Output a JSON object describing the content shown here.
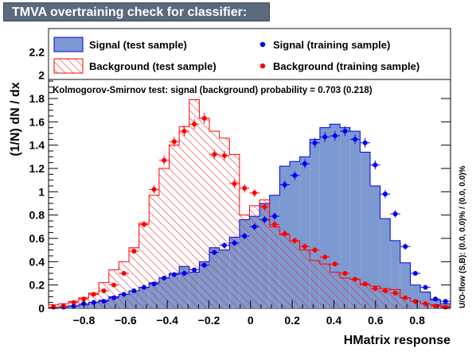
{
  "title": "TMVA overtraining check for classifier: HMatrix",
  "colors": {
    "signal_fill": "#7d99d1",
    "signal_line": "#0000ee",
    "background_line": "#ff0000",
    "background_hatch": "#dd2222",
    "title_bg": "#5a6a7c"
  },
  "legend": {
    "signal_test": "Signal (test sample)",
    "background_test": "Background (test sample)",
    "signal_train": "Signal (training sample)",
    "background_train": "Background (training sample)"
  },
  "ks_text": "Kolmogorov-Smirnov test: signal (background) probability = 0.703 (0.218)",
  "side_text": "U/O-flow (S,B): (0.0, 0.0)% / (0.0, 0.0)%",
  "chart_data": {
    "type": "histogram",
    "xlabel": "HMatrix response",
    "ylabel": "(1/N) dN / dx",
    "xlim": [
      -0.97,
      0.96
    ],
    "ylim": [
      0,
      2.4
    ],
    "x_ticks": [
      "−0.8",
      "−0.6",
      "−0.4",
      "−0.2",
      "0",
      "0.2",
      "0.4",
      "0.6",
      "0.8"
    ],
    "x_tick_values": [
      -0.8,
      -0.6,
      -0.4,
      -0.2,
      0,
      0.2,
      0.4,
      0.6,
      0.8
    ],
    "y_ticks": [
      "0",
      "0.2",
      "0.4",
      "0.6",
      "0.8",
      "1",
      "1.2",
      "1.4",
      "1.6",
      "1.8",
      "2",
      "2.2"
    ],
    "y_tick_values": [
      0,
      0.2,
      0.4,
      0.6,
      0.8,
      1.0,
      1.2,
      1.4,
      1.6,
      1.8,
      2.0,
      2.2
    ],
    "bin_edges_start": -0.97,
    "bin_width": 0.04825,
    "series": [
      {
        "name": "Signal (test sample)",
        "kind": "filled-histogram",
        "values": [
          0.01,
          0.01,
          0.02,
          0.03,
          0.05,
          0.07,
          0.1,
          0.12,
          0.15,
          0.18,
          0.22,
          0.26,
          0.3,
          0.36,
          0.31,
          0.4,
          0.52,
          0.5,
          0.61,
          0.76,
          0.79,
          0.9,
          0.97,
          1.22,
          1.26,
          1.3,
          1.45,
          1.55,
          1.58,
          1.55,
          1.52,
          1.34,
          1.05,
          0.77,
          0.58,
          0.39,
          0.2,
          0.14,
          0.07,
          0.04
        ]
      },
      {
        "name": "Background (test sample)",
        "kind": "hatched-histogram",
        "values": [
          0.03,
          0.04,
          0.06,
          0.09,
          0.13,
          0.22,
          0.33,
          0.4,
          0.52,
          0.73,
          0.97,
          1.2,
          1.4,
          1.56,
          1.79,
          1.63,
          1.52,
          1.46,
          1.32,
          0.8,
          0.88,
          0.93,
          0.7,
          0.63,
          0.58,
          0.5,
          0.41,
          0.38,
          0.31,
          0.26,
          0.25,
          0.2,
          0.19,
          0.17,
          0.16,
          0.09,
          0.06,
          0.04,
          0.03,
          0.02
        ]
      },
      {
        "name": "Signal (training sample)",
        "kind": "points",
        "values": [
          0.01,
          0.01,
          0.02,
          0.04,
          0.05,
          0.06,
          0.09,
          0.12,
          0.15,
          0.18,
          0.21,
          0.26,
          0.29,
          0.3,
          0.33,
          0.37,
          0.48,
          0.54,
          0.56,
          0.62,
          0.7,
          0.76,
          0.79,
          1.06,
          1.14,
          1.24,
          1.42,
          1.47,
          1.48,
          1.52,
          1.45,
          1.42,
          1.23,
          0.98,
          0.81,
          0.53,
          0.3,
          0.18,
          0.08,
          0.06
        ]
      },
      {
        "name": "Background (training sample)",
        "kind": "points",
        "values": [
          0.01,
          0.02,
          0.05,
          0.08,
          0.12,
          0.15,
          0.2,
          0.3,
          0.49,
          0.72,
          1.02,
          1.27,
          1.43,
          1.52,
          1.58,
          1.63,
          1.32,
          1.31,
          1.07,
          1.03,
          0.99,
          0.87,
          0.72,
          0.64,
          0.58,
          0.53,
          0.5,
          0.44,
          0.38,
          0.3,
          0.25,
          0.21,
          0.17,
          0.15,
          0.13,
          0.09,
          0.06,
          0.04,
          0.02,
          0.01
        ]
      }
    ]
  }
}
